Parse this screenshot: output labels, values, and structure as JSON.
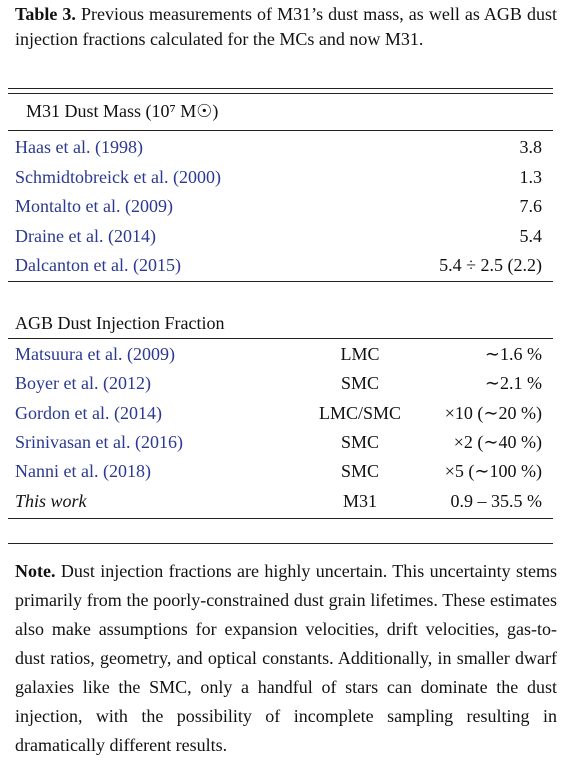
{
  "caption": {
    "label": "Table 3.",
    "text": "Previous measurements of M31’s dust mass, as well as AGB dust injection fractions calculated for the MCs and now M31."
  },
  "dust_mass": {
    "header": "M31 Dust Mass (10⁷ M☉)",
    "rows": [
      [
        "Haas et al. (1998)",
        "3.8"
      ],
      [
        "Schmidtobreick et al. (2000)",
        "1.3"
      ],
      [
        "Montalto et al. (2009)",
        "7.6"
      ],
      [
        "Draine et al. (2014)",
        "5.4"
      ],
      [
        "Dalcanton et al. (2015)",
        "5.4 ÷ 2.5 (2.2)"
      ]
    ]
  },
  "injection": {
    "header": "AGB Dust Injection Fraction",
    "rows": [
      [
        "Matsuura et al. (2009)",
        "LMC",
        "∼1.6 %"
      ],
      [
        "Boyer et al. (2012)",
        "SMC",
        "∼2.1 %"
      ],
      [
        "Gordon et al. (2014)",
        "LMC/SMC",
        "×10 (∼20 %)"
      ],
      [
        "Srinivasan et al. (2016)",
        "SMC",
        "×2 (∼40 %)"
      ],
      [
        "Nanni et al. (2018)",
        "SMC",
        "×5 (∼100 %)"
      ],
      [
        "This work",
        "M31",
        "0.9 – 35.5 %"
      ]
    ]
  },
  "note": {
    "label": "Note.",
    "text": "Dust injection fractions are highly uncertain. This uncertainty stems primarily from the poorly-constrained dust grain lifetimes. These estimates also make assumptions for expansion velocities, drift velocities, gas-to-dust ratios, geometry, and optical constants. Additionally, in smaller dwarf galaxies like the SMC, only a handful of stars can dominate the dust injection, with the possibility of incomplete sampling resulting in dramatically different results."
  }
}
